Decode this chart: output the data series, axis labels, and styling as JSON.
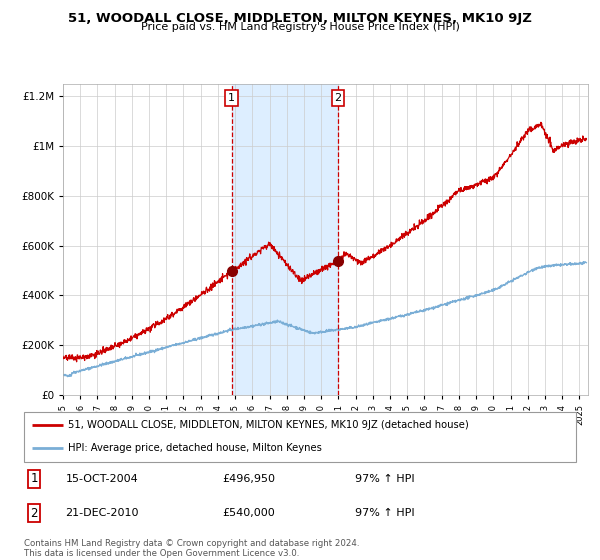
{
  "title": "51, WOODALL CLOSE, MIDDLETON, MILTON KEYNES, MK10 9JZ",
  "subtitle": "Price paid vs. HM Land Registry's House Price Index (HPI)",
  "legend_line1": "51, WOODALL CLOSE, MIDDLETON, MILTON KEYNES, MK10 9JZ (detached house)",
  "legend_line2": "HPI: Average price, detached house, Milton Keynes",
  "transaction1_date": "15-OCT-2004",
  "transaction1_price": "£496,950",
  "transaction1_hpi": "97% ↑ HPI",
  "transaction2_date": "21-DEC-2010",
  "transaction2_price": "£540,000",
  "transaction2_hpi": "97% ↑ HPI",
  "footer": "Contains HM Land Registry data © Crown copyright and database right 2024.\nThis data is licensed under the Open Government Licence v3.0.",
  "red_line_color": "#cc0000",
  "blue_line_color": "#7aaed6",
  "shade_color": "#ddeeff",
  "grid_color": "#cccccc",
  "background_color": "#ffffff",
  "marker_color": "#880000",
  "vline_color": "#cc0000",
  "transaction1_x": 2004.79,
  "transaction2_x": 2010.97,
  "ylim_max": 1250000,
  "xlim_start": 1995,
  "xlim_end": 2025.5
}
